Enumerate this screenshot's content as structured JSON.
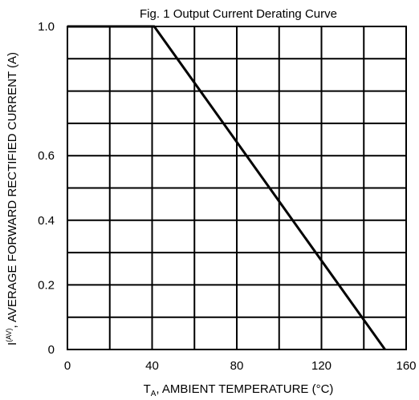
{
  "chart_data": {
    "type": "line",
    "title": "Fig. 1  Output Current Derating Curve",
    "xlabel": {
      "symbol": "T",
      "subscript": "A",
      "text": ", AMBIENT TEMPERATURE (°C)"
    },
    "ylabel": {
      "symbol": "I",
      "superscript": "(AV)",
      "text": ", AVERAGE FORWARD RECTIFIED CURRENT (A)"
    },
    "xlim": [
      0,
      160
    ],
    "ylim": [
      0,
      1.0
    ],
    "x_ticks": [
      {
        "value": 0,
        "label": "0"
      },
      {
        "value": 40,
        "label": "40"
      },
      {
        "value": 80,
        "label": "80"
      },
      {
        "value": 120,
        "label": "120"
      },
      {
        "value": 160,
        "label": "160"
      }
    ],
    "y_ticks": [
      {
        "value": 0,
        "label": "0"
      },
      {
        "value": 0.2,
        "label": "0.2"
      },
      {
        "value": 0.4,
        "label": "0.4"
      },
      {
        "value": 0.6,
        "label": "0.6"
      },
      {
        "value": 1.0,
        "label": "1.0"
      }
    ],
    "grid": true,
    "grid_x": [
      0,
      20,
      40,
      60,
      80,
      100,
      120,
      140,
      160
    ],
    "grid_y": [
      0,
      0.1,
      0.2,
      0.3,
      0.4,
      0.5,
      0.6,
      0.7,
      0.8,
      0.9,
      1.0
    ],
    "series": [
      {
        "x": [
          0,
          41,
          150
        ],
        "y": [
          1.0,
          1.0,
          0.0
        ],
        "color": "#000000"
      }
    ]
  }
}
